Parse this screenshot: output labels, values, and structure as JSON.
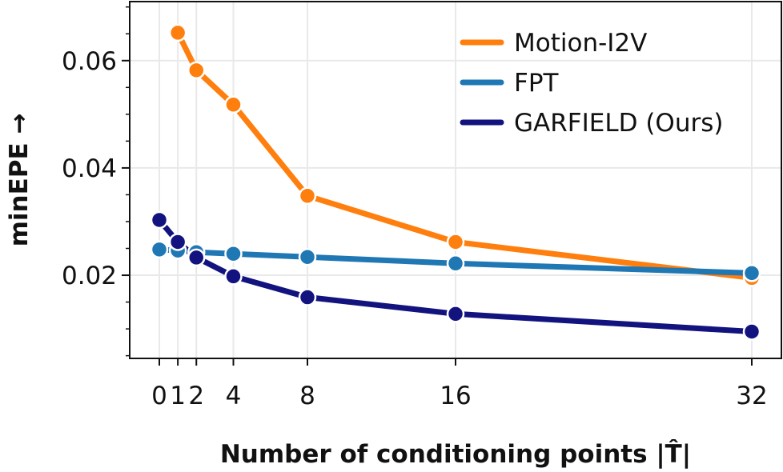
{
  "chart_data": {
    "type": "line",
    "xlabel": "Number of conditioning points |T̂|",
    "ylabel": "minEPE →",
    "x": [
      0,
      1,
      2,
      4,
      8,
      16,
      32
    ],
    "x_ticks": [
      0,
      1,
      2,
      4,
      8,
      16,
      32
    ],
    "x_tick_labels": [
      "0",
      "1",
      "2",
      "4",
      "8",
      "16",
      "32"
    ],
    "y_ticks": [
      0.02,
      0.04,
      0.06
    ],
    "y_tick_labels": [
      "0.02",
      "0.04",
      "0.06"
    ],
    "xlim": [
      -1.6,
      33.6
    ],
    "ylim": [
      0.0045,
      0.071
    ],
    "grid": true,
    "legend_position": "top-right",
    "series": [
      {
        "name": "Motion-I2V",
        "color": "#ff7f0e",
        "x": [
          1,
          2,
          4,
          8,
          16,
          32
        ],
        "values": [
          0.0652,
          0.0582,
          0.0518,
          0.0348,
          0.0262,
          0.0195
        ]
      },
      {
        "name": "FPT",
        "color": "#1f77b4",
        "x": [
          0,
          1,
          2,
          4,
          8,
          16,
          32
        ],
        "values": [
          0.0248,
          0.0246,
          0.0243,
          0.024,
          0.0234,
          0.0222,
          0.0204
        ]
      },
      {
        "name": "GARFIELD (Ours)",
        "color": "#13137f",
        "x": [
          0,
          1,
          2,
          4,
          8,
          16,
          32
        ],
        "values": [
          0.0303,
          0.0262,
          0.0233,
          0.0198,
          0.0159,
          0.0128,
          0.0095
        ]
      }
    ]
  }
}
